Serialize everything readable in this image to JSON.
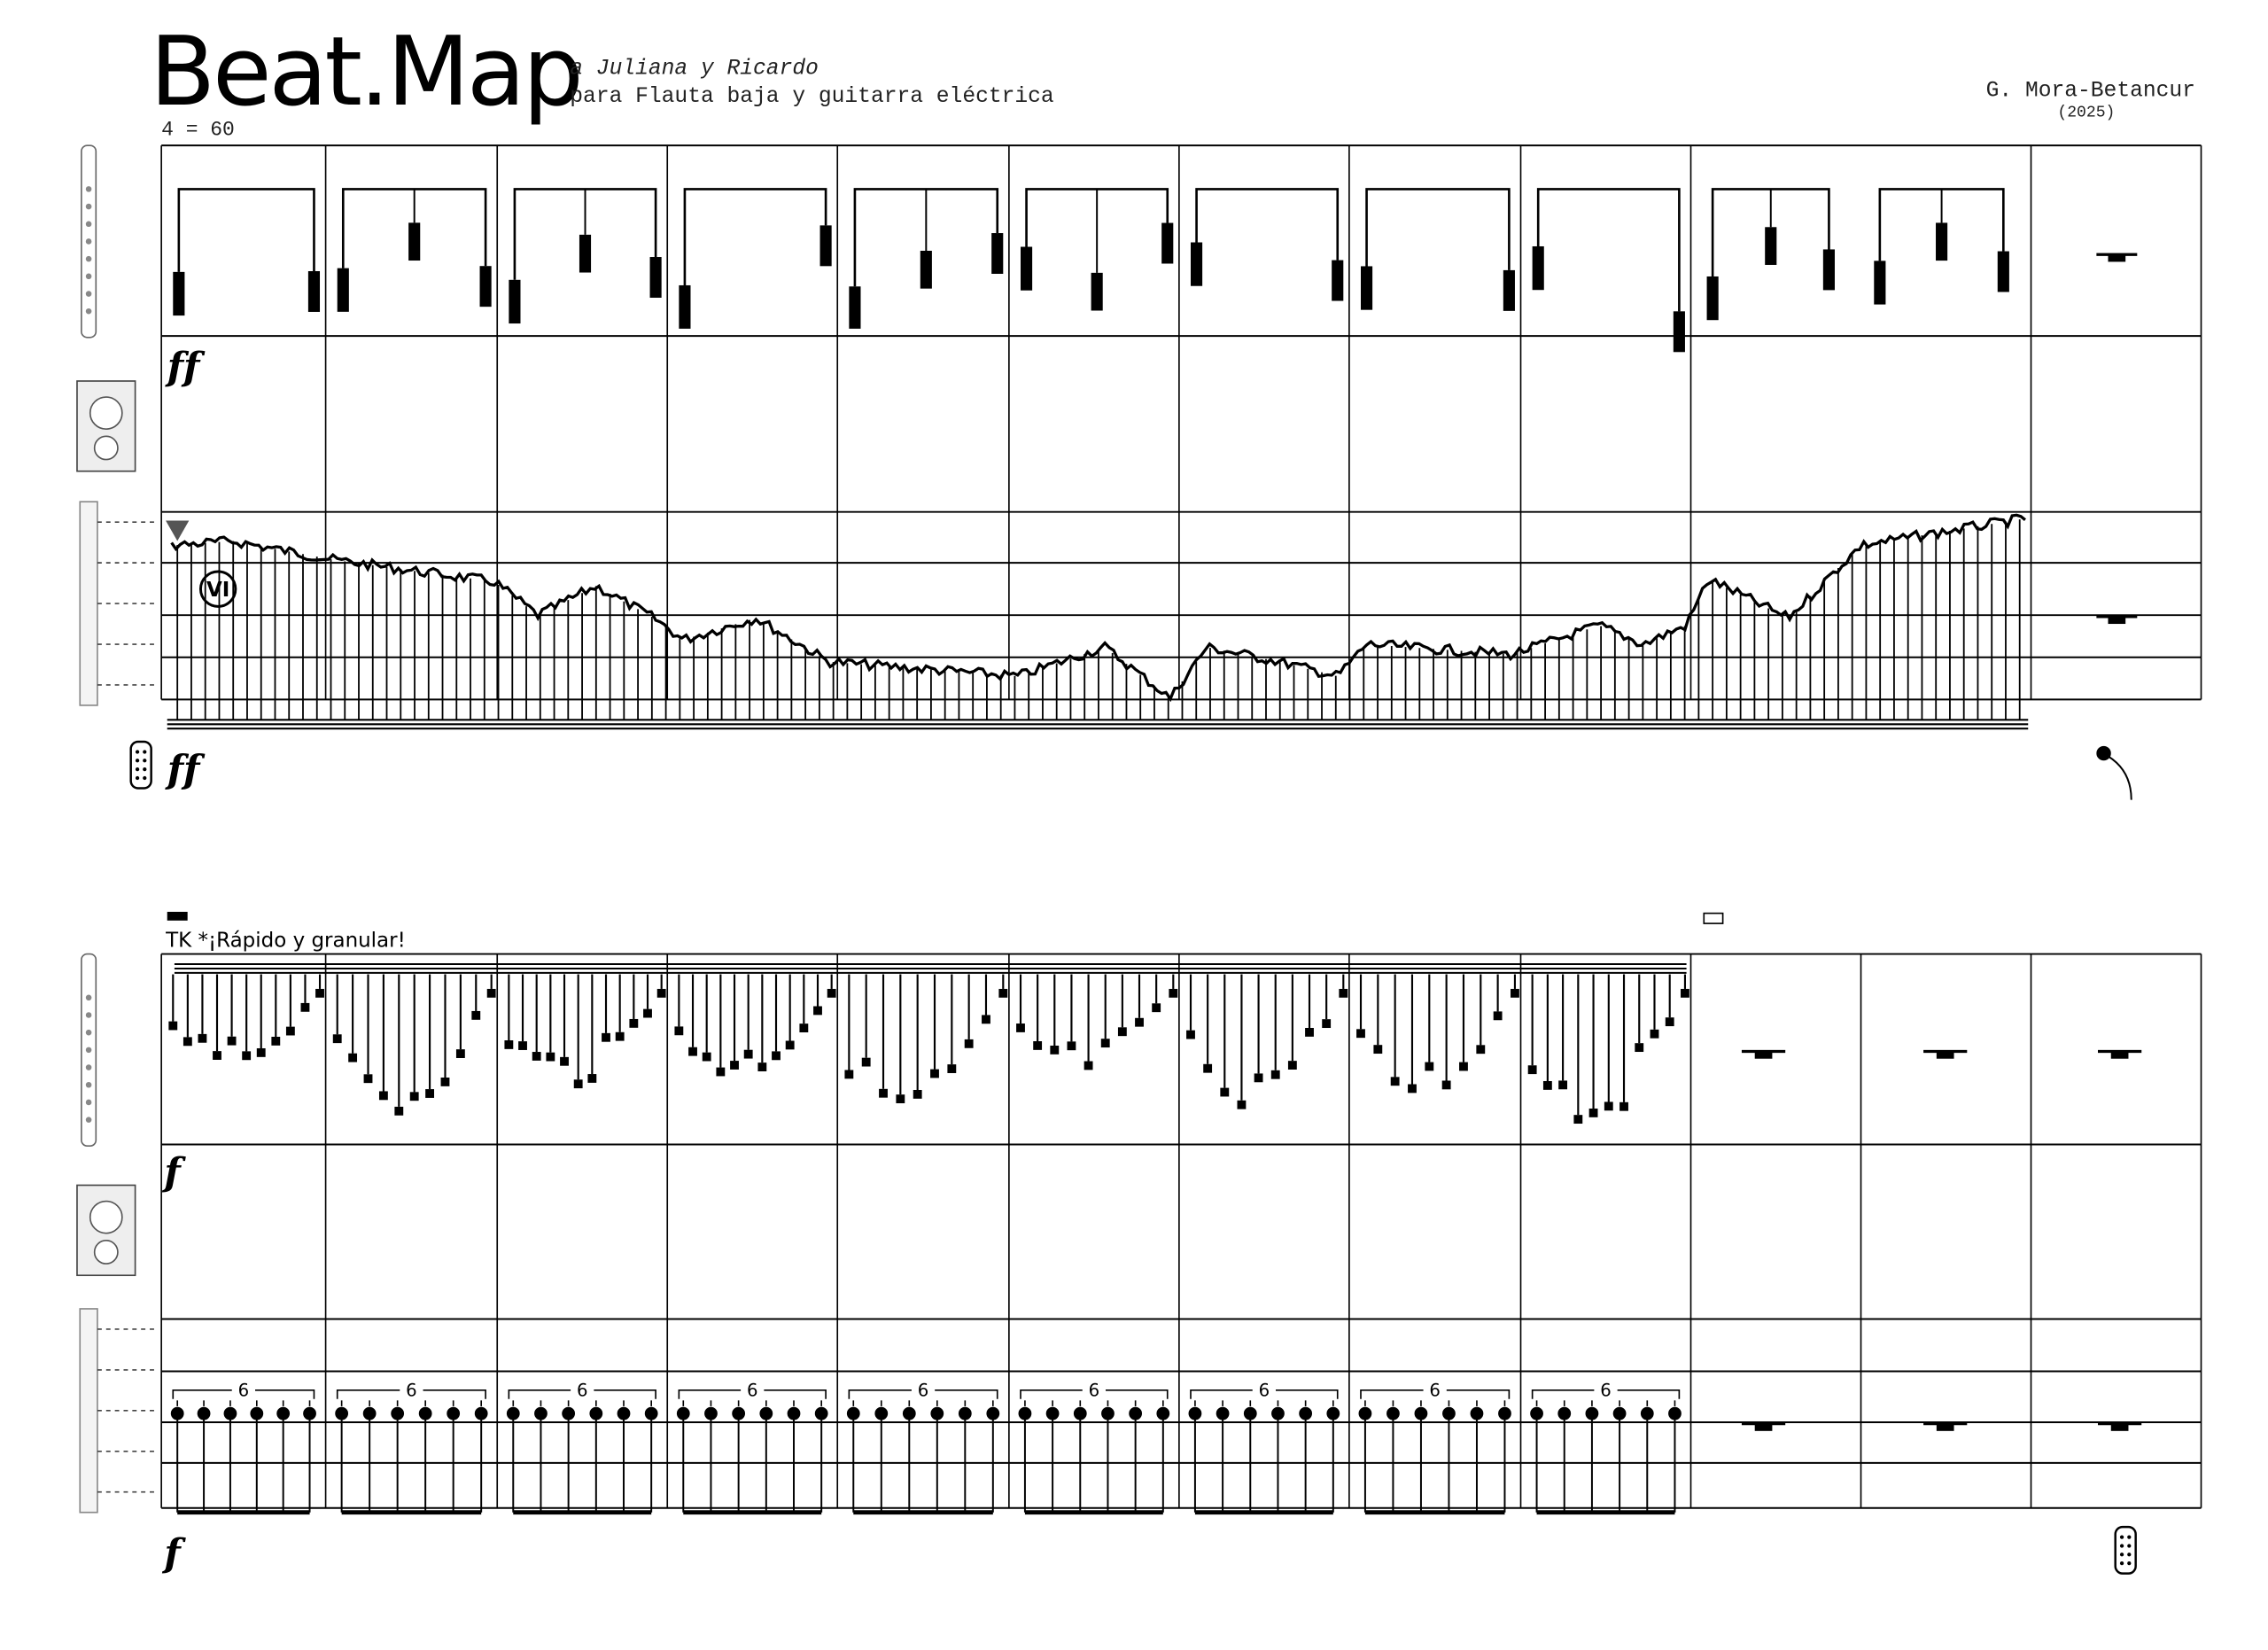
{
  "header": {
    "title": "Beat.Map",
    "dedication": "a Juliana y Ricardo",
    "subtitle": "para Flauta baja y guitarra eléctrica",
    "composer": "G. Mora-Betancur",
    "year": "(2025)",
    "tempo": "4 = 60"
  },
  "system1": {
    "amp_dynamic": "ff",
    "guitar_string": "VI",
    "guitar_dynamic": "ff"
  },
  "system2": {
    "instruction": "TK *¡Rápido y granular!",
    "amp_dynamic": "f",
    "guitar_dynamic": "f",
    "tuplets": [
      "6",
      "6",
      "6",
      "6",
      "6",
      "6",
      "6",
      "6",
      "6"
    ]
  }
}
